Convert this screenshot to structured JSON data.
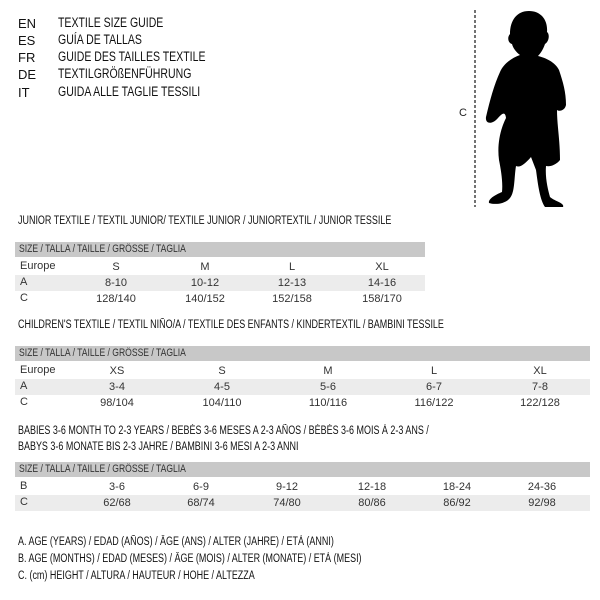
{
  "header": {
    "languages": [
      {
        "code": "EN",
        "text": "TEXTILE SIZE GUIDE"
      },
      {
        "code": "ES",
        "text": "GUÍA DE TALLAS"
      },
      {
        "code": "FR",
        "text": "GUIDE DES TAILLES TEXTILE"
      },
      {
        "code": "DE",
        "text": "TEXTILGRÖßENFÜHRUNG"
      },
      {
        "code": "IT",
        "text": "GUIDA ALLE TAGLIE TESSILI"
      }
    ]
  },
  "figure": {
    "measure_label": "C"
  },
  "size_header": "SIZE / TALLA / TAILLE / GRÖSSE / TAGLIA",
  "tables": [
    {
      "title": "JUNIOR TEXTILE / TEXTIL JUNIOR/ TEXTILE JUNIOR / JUNIORTEXTIL / JUNIOR TESSILE",
      "rows": [
        {
          "label": "Europe",
          "values": [
            "S",
            "M",
            "L",
            "XL"
          ]
        },
        {
          "label": "A",
          "values": [
            "8-10",
            "10-12",
            "12-13",
            "14-16"
          ]
        },
        {
          "label": "C",
          "values": [
            "128/140",
            "140/152",
            "152/158",
            "158/170"
          ]
        }
      ]
    },
    {
      "title": "CHILDREN'S TEXTILE / TEXTIL NIÑO/A / TEXTILE DES ENFANTS / KINDERTEXTIL / BAMBINI TESSILE",
      "rows": [
        {
          "label": "Europe",
          "values": [
            "XS",
            "S",
            "M",
            "L",
            "XL"
          ]
        },
        {
          "label": "A",
          "values": [
            "3-4",
            "4-5",
            "5-6",
            "6-7",
            "7-8"
          ]
        },
        {
          "label": "C",
          "values": [
            "98/104",
            "104/110",
            "110/116",
            "116/122",
            "122/128"
          ]
        }
      ]
    },
    {
      "title": "BABIES 3-6 MONTH TO 2-3 YEARS / BEBÉS 3-6 MESES A 2-3 AÑOS / BÉBÉS 3-6 MOIS À 2-3 ANS /",
      "title2": "BABYS 3-6 MONATE BIS 2-3 JAHRE / BAMBINI 3-6 MESI A 2-3 ANNI",
      "rows": [
        {
          "label": "B",
          "values": [
            "3-6",
            "6-9",
            "9-12",
            "12-18",
            "18-24",
            "24-36"
          ]
        },
        {
          "label": "C",
          "values": [
            "62/68",
            "68/74",
            "74/80",
            "80/86",
            "86/92",
            "92/98"
          ]
        }
      ]
    }
  ],
  "legend": [
    "A. AGE (YEARS) / EDAD (AÑOS) / ÂGE (ANS) / ALTER (JAHRE) / ETÀ (ANNI)",
    "B. AGE (MONTHS) / EDAD (MESES) / ÂGE (MOIS) / ALTER (MONATE) / ETÀ (MESI)",
    "C. (cm) HEIGHT / ALTURA / HAUTEUR / HÖHE / ALTEZZA"
  ]
}
